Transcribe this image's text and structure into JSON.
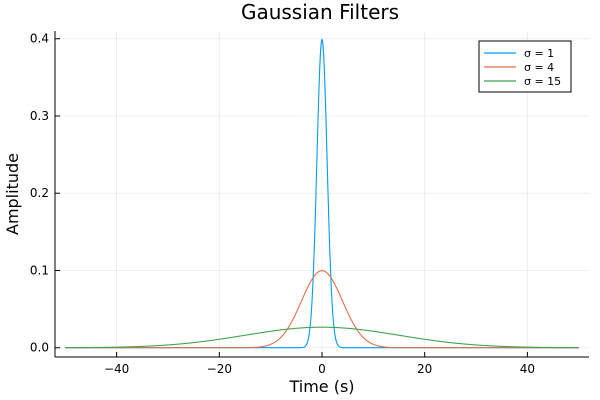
{
  "chart_data": {
    "type": "line",
    "title": "Gaussian Filters",
    "xlabel": "Time (s)",
    "ylabel": "Amplitude",
    "xlim": [
      -52,
      52
    ],
    "ylim": [
      -0.012,
      0.41
    ],
    "xticks": [
      -40,
      -20,
      0,
      20,
      40
    ],
    "yticks": [
      0.0,
      0.1,
      0.2,
      0.3,
      0.4
    ],
    "ytick_labels": [
      "0.0",
      "0.1",
      "0.2",
      "0.3",
      "0.4"
    ],
    "grid": true,
    "legend_position": "top-right",
    "x_range": [
      -50,
      50
    ],
    "series": [
      {
        "name": "σ = 1",
        "sigma": 1,
        "color": "#009AFA"
      },
      {
        "name": "σ = 4",
        "sigma": 4,
        "color": "#E36F47"
      },
      {
        "name": "σ = 15",
        "sigma": 15,
        "color": "#3EA44E"
      }
    ]
  }
}
